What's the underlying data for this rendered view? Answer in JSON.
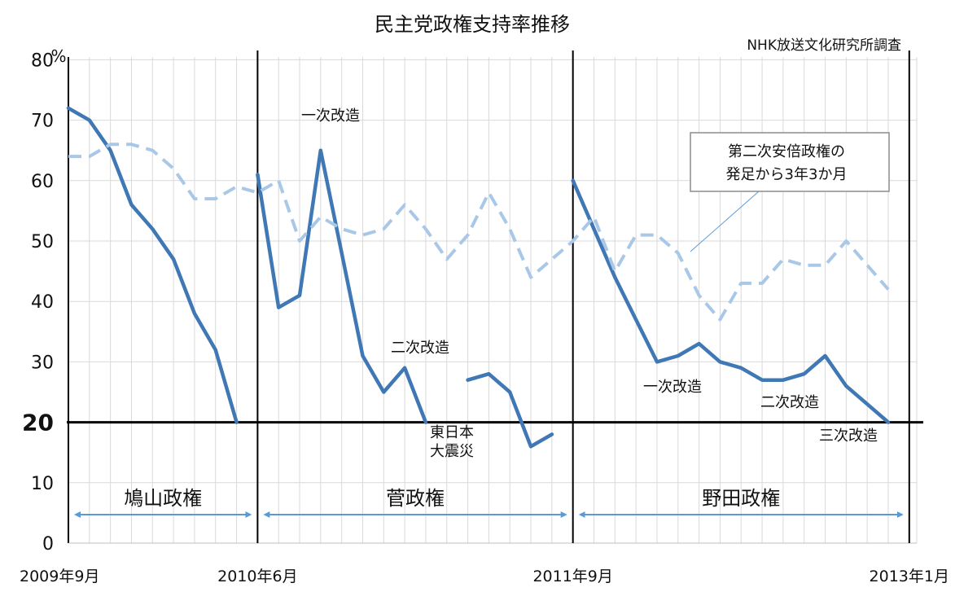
{
  "colors": {
    "approval": "#3F78B5",
    "trend": "#A9C8E8",
    "arrow": "#5B9BD5",
    "grid": "#D9D9D9",
    "reference": "#000000"
  },
  "chart_data": {
    "type": "line",
    "title": "民主党政権支持率推移",
    "source": "NHK放送文化研究所調査",
    "ylabel": "%",
    "ylim": [
      0,
      80
    ],
    "y_ticks": [
      "0",
      "10",
      "20",
      "30",
      "40",
      "50",
      "60",
      "70",
      "80"
    ],
    "y_highlight": "20",
    "grid": true,
    "months": [
      "2009-09",
      "2009-10",
      "2009-11",
      "2009-12",
      "2010-01",
      "2010-02",
      "2010-03",
      "2010-04",
      "2010-05",
      "2010-06",
      "2010-07",
      "2010-08",
      "2010-09",
      "2010-10",
      "2010-11",
      "2010-12",
      "2011-01",
      "2011-02",
      "2011-03",
      "2011-04",
      "2011-05",
      "2011-06",
      "2011-07",
      "2011-08",
      "2011-09",
      "2011-10",
      "2011-11",
      "2011-12",
      "2012-01",
      "2012-02",
      "2012-03",
      "2012-04",
      "2012-05",
      "2012-06",
      "2012-07",
      "2012-08",
      "2012-09",
      "2012-10",
      "2012-11",
      "2012-12",
      "2013-01"
    ],
    "x_tick_labels": [
      {
        "month": "2009-09",
        "label": "2009年9月"
      },
      {
        "month": "2010-06",
        "label": "2010年6月"
      },
      {
        "month": "2011-09",
        "label": "2011年9月"
      },
      {
        "month": "2013-01",
        "label": "2013年1月"
      }
    ],
    "series": [
      {
        "style": "solid",
        "segments": [
          [
            [
              "2009-09",
              72
            ],
            [
              "2009-10",
              70
            ],
            [
              "2009-11",
              65
            ],
            [
              "2009-12",
              56
            ],
            [
              "2010-01",
              52
            ],
            [
              "2010-02",
              47
            ],
            [
              "2010-03",
              38
            ],
            [
              "2010-04",
              32
            ],
            [
              "2010-05",
              20
            ]
          ],
          [
            [
              "2010-06",
              61
            ],
            [
              "2010-07",
              39
            ],
            [
              "2010-08",
              41
            ],
            [
              "2010-09",
              65
            ],
            [
              "2010-10",
              48
            ],
            [
              "2010-11",
              31
            ],
            [
              "2010-12",
              25
            ],
            [
              "2011-01",
              29
            ],
            [
              "2011-02",
              20
            ]
          ],
          [
            [
              "2011-04",
              27
            ],
            [
              "2011-05",
              28
            ],
            [
              "2011-06",
              25
            ],
            [
              "2011-07",
              16
            ],
            [
              "2011-08",
              18
            ]
          ],
          [
            [
              "2011-09",
              60
            ],
            [
              "2011-10",
              52
            ],
            [
              "2011-11",
              44
            ],
            [
              "2011-12",
              37
            ],
            [
              "2012-01",
              30
            ],
            [
              "2012-02",
              31
            ],
            [
              "2012-03",
              33
            ],
            [
              "2012-04",
              30
            ],
            [
              "2012-05",
              29
            ],
            [
              "2012-06",
              27
            ],
            [
              "2012-07",
              27
            ],
            [
              "2012-08",
              28
            ],
            [
              "2012-09",
              31
            ],
            [
              "2012-10",
              26
            ],
            [
              "2012-11",
              23
            ],
            [
              "2012-12",
              20
            ]
          ]
        ]
      },
      {
        "style": "dashed",
        "segments": [
          [
            [
              "2009-09",
              64
            ],
            [
              "2009-10",
              64
            ],
            [
              "2009-11",
              66
            ],
            [
              "2009-12",
              66
            ],
            [
              "2010-01",
              65
            ],
            [
              "2010-02",
              62
            ],
            [
              "2010-03",
              57
            ],
            [
              "2010-04",
              57
            ],
            [
              "2010-05",
              59
            ],
            [
              "2010-06",
              58
            ],
            [
              "2010-07",
              60
            ],
            [
              "2010-08",
              50
            ],
            [
              "2010-09",
              54
            ],
            [
              "2010-10",
              52
            ],
            [
              "2010-11",
              51
            ],
            [
              "2010-12",
              52
            ],
            [
              "2011-01",
              56
            ],
            [
              "2011-02",
              52
            ],
            [
              "2011-03",
              47
            ],
            [
              "2011-04",
              51
            ],
            [
              "2011-05",
              58
            ],
            [
              "2011-06",
              52
            ],
            [
              "2011-07",
              44
            ],
            [
              "2011-08",
              47
            ],
            [
              "2011-09",
              50
            ],
            [
              "2011-10",
              54
            ],
            [
              "2011-11",
              45
            ],
            [
              "2011-12",
              51
            ],
            [
              "2012-01",
              51
            ],
            [
              "2012-02",
              48
            ],
            [
              "2012-03",
              41
            ],
            [
              "2012-04",
              37
            ],
            [
              "2012-05",
              43
            ],
            [
              "2012-06",
              43
            ],
            [
              "2012-07",
              47
            ],
            [
              "2012-08",
              46
            ],
            [
              "2012-09",
              46
            ],
            [
              "2012-10",
              50
            ],
            [
              "2012-11",
              46
            ],
            [
              "2012-12",
              42
            ]
          ]
        ]
      }
    ],
    "cabinet_boundaries": [
      "2010-06",
      "2011-09",
      "2013-01"
    ],
    "periods": [
      {
        "label": "鳩山政権",
        "start": "2009-09",
        "end": "2010-06"
      },
      {
        "label": "菅政権",
        "start": "2010-06",
        "end": "2011-09"
      },
      {
        "label": "野田政権",
        "start": "2011-09",
        "end": "2013-01"
      }
    ],
    "annotations": [
      {
        "id": "kan-first-reshuffle",
        "lines": [
          "一次改造"
        ]
      },
      {
        "id": "kan-second-reshuffle",
        "lines": [
          "二次改造"
        ]
      },
      {
        "id": "earthquake",
        "lines": [
          "東日本",
          "大震災"
        ]
      },
      {
        "id": "noda-first-reshuffle",
        "lines": [
          "一次改造"
        ]
      },
      {
        "id": "noda-second-reshuffle",
        "lines": [
          "二次改造"
        ]
      },
      {
        "id": "noda-third-reshuffle",
        "lines": [
          "三次改造"
        ]
      },
      {
        "id": "abe-callout",
        "lines": [
          "第二次安倍政権の",
          "発足から3年3か月"
        ]
      }
    ]
  }
}
